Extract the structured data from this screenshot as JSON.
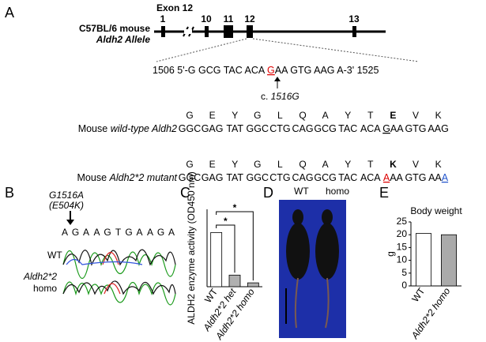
{
  "panel_a": {
    "label": "A",
    "exon_title": "Exon 12",
    "exon_numbers": [
      "1",
      "10",
      "11",
      "12",
      "13"
    ],
    "strain": "C57BL/6 mouse",
    "allele": "Aldh2 Allele",
    "sequence": {
      "prefix": "1506 5'-G GCG TAC ACA ",
      "site": "G",
      "suffix": "AA GTG AAG A-3' 1525"
    },
    "site_note": {
      "prefix": "c. ",
      "position": "1516G"
    },
    "wild_type": {
      "amino_acids": [
        "G",
        "E",
        "Y",
        "G",
        "L",
        "Q",
        "A",
        "Y",
        "T",
        "E",
        "V",
        "K"
      ],
      "prefix": "Mouse ",
      "name": "wild-type Aldh2",
      "codons": [
        [
          "GGC"
        ],
        [
          "GAG"
        ],
        [
          "TAT"
        ],
        [
          "GGC"
        ],
        [
          "CTG"
        ],
        [
          "CAG"
        ],
        [
          "GCG"
        ],
        [
          "TAC"
        ],
        [
          "ACA"
        ],
        [
          "G",
          "AA"
        ],
        [
          "GTG"
        ],
        [
          "AAG"
        ]
      ]
    },
    "mutant": {
      "amino_acids": [
        "G",
        "E",
        "Y",
        "G",
        "L",
        "Q",
        "A",
        "Y",
        "T",
        "K",
        "V",
        "K"
      ],
      "prefix": "Mouse ",
      "name": "Aldh2*2 mutant",
      "codons": [
        [
          "GGC"
        ],
        [
          "GAG"
        ],
        [
          "TAT"
        ],
        [
          "GGC"
        ],
        [
          "CTG"
        ],
        [
          "CAG"
        ],
        [
          "GCG"
        ],
        [
          "TAC"
        ],
        [
          "ACA"
        ],
        [
          "A",
          "AA"
        ],
        [
          "GTG"
        ],
        [
          "AA",
          "A"
        ]
      ]
    }
  },
  "panel_b": {
    "label": "B",
    "mutation": "G1516A",
    "protein_change": "(E504K)",
    "bases": [
      "A",
      "G",
      "A",
      "A",
      "G",
      "T",
      "G",
      "A",
      "A",
      "G",
      "A"
    ],
    "wt_label": "WT",
    "mut_label": "Aldh2*2",
    "mut_sublabel": "homo"
  },
  "panel_d": {
    "label": "D",
    "left": "WT",
    "right": "homo"
  },
  "chart_data": [
    {
      "type": "bar",
      "panel": "C",
      "ylabel": "ALDH2 enzyme activity (OD450 nm)",
      "categories": [
        "WT",
        "Aldh2*2 het",
        "Aldh2*2 homo"
      ],
      "values": [
        0.07,
        0.015,
        0.005
      ],
      "colors": [
        "#ffffff",
        "#b0b0b0",
        "#b0b0b0"
      ],
      "ylim": [
        0,
        0.1
      ],
      "annotations": [
        "*",
        "*"
      ]
    },
    {
      "type": "bar",
      "panel": "E",
      "title": "Body weight",
      "ylabel": "g",
      "categories": [
        "WT",
        "Aldh2*2 homo"
      ],
      "values": [
        20.5,
        20
      ],
      "colors": [
        "#ffffff",
        "#aaaaaa"
      ],
      "ylim": [
        0,
        25
      ],
      "yticks": [
        0,
        5,
        10,
        15,
        20,
        25
      ]
    }
  ]
}
